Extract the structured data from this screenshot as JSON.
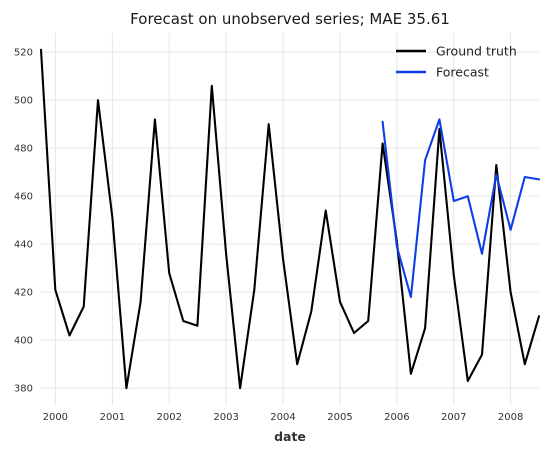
{
  "chart_data": {
    "type": "line",
    "title": "Forecast on unobserved series; MAE 35.61",
    "xlabel": "date",
    "ylabel": "",
    "x_tick_labels": [
      "2000",
      "2001",
      "2002",
      "2003",
      "2004",
      "2005",
      "2006",
      "2007",
      "2008"
    ],
    "y_ticks": [
      380,
      400,
      420,
      440,
      460,
      480,
      500,
      520
    ],
    "xlim": [
      "1999-10-01",
      "2008-07-01"
    ],
    "ylim": [
      373,
      528
    ],
    "grid": true,
    "legend_position": "top-right",
    "series": [
      {
        "name": "Ground truth",
        "color": "#000000",
        "points": [
          [
            "1999-10-01",
            521
          ],
          [
            "2000-01-01",
            421
          ],
          [
            "2000-04-01",
            402
          ],
          [
            "2000-07-01",
            414
          ],
          [
            "2000-10-01",
            500
          ],
          [
            "2001-01-01",
            451
          ],
          [
            "2001-04-01",
            380
          ],
          [
            "2001-07-01",
            416
          ],
          [
            "2001-10-01",
            492
          ],
          [
            "2002-01-01",
            428
          ],
          [
            "2002-04-01",
            408
          ],
          [
            "2002-07-01",
            406
          ],
          [
            "2002-10-01",
            506
          ],
          [
            "2003-01-01",
            436
          ],
          [
            "2003-04-01",
            380
          ],
          [
            "2003-07-01",
            421
          ],
          [
            "2003-10-01",
            490
          ],
          [
            "2004-01-01",
            434
          ],
          [
            "2004-04-01",
            390
          ],
          [
            "2004-07-01",
            412
          ],
          [
            "2004-10-01",
            454
          ],
          [
            "2005-01-01",
            416
          ],
          [
            "2005-04-01",
            403
          ],
          [
            "2005-07-01",
            408
          ],
          [
            "2005-10-01",
            482
          ],
          [
            "2006-01-01",
            441
          ],
          [
            "2006-04-01",
            386
          ],
          [
            "2006-07-01",
            405
          ],
          [
            "2006-10-01",
            488
          ],
          [
            "2007-01-01",
            427
          ],
          [
            "2007-04-01",
            383
          ],
          [
            "2007-07-01",
            394
          ],
          [
            "2007-10-01",
            473
          ],
          [
            "2008-01-01",
            420
          ],
          [
            "2008-04-01",
            390
          ],
          [
            "2008-07-01",
            410
          ]
        ]
      },
      {
        "name": "Forecast",
        "color": "#0d3ee8",
        "points": [
          [
            "2005-10-01",
            491
          ],
          [
            "2006-01-01",
            439
          ],
          [
            "2006-04-01",
            418
          ],
          [
            "2006-07-01",
            475
          ],
          [
            "2006-10-01",
            492
          ],
          [
            "2007-01-01",
            458
          ],
          [
            "2007-04-01",
            460
          ],
          [
            "2007-07-01",
            436
          ],
          [
            "2007-10-01",
            469
          ],
          [
            "2008-01-01",
            446
          ],
          [
            "2008-04-01",
            468
          ],
          [
            "2008-07-01",
            467
          ]
        ]
      }
    ]
  }
}
